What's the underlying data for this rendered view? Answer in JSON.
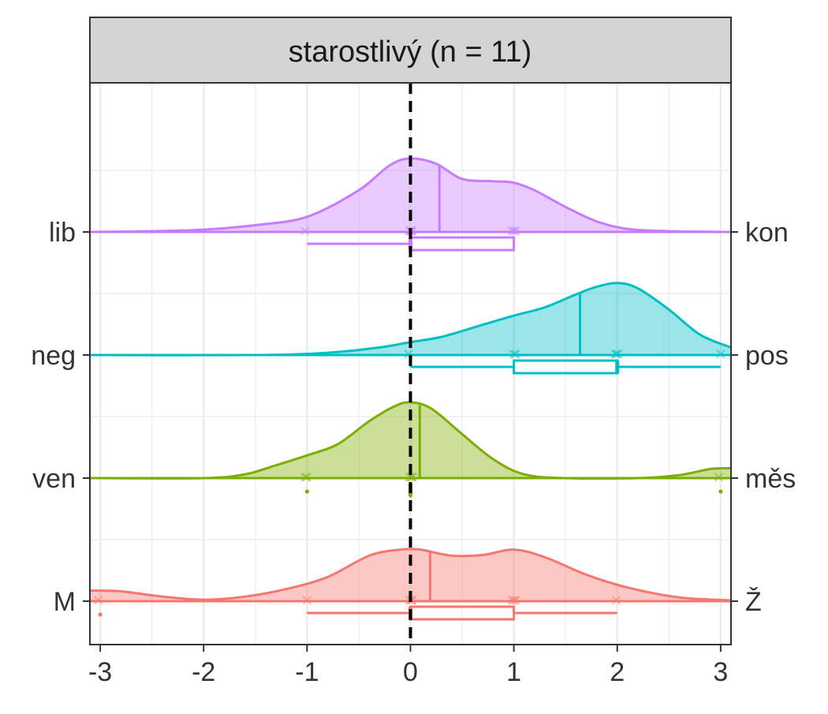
{
  "chart_data": {
    "type": "ridgeline",
    "title": "starostlivý (n = 11)",
    "xlim": [
      -3.1,
      3.1
    ],
    "x_ticks": [
      "-3",
      "-2",
      "-1",
      "0",
      "1",
      "2",
      "3"
    ],
    "x_tick_values": [
      -3,
      -2,
      -1,
      0,
      1,
      2,
      3
    ],
    "reference_line_x": 0,
    "grid": true,
    "rows": [
      {
        "left_label": "lib",
        "right_label": "kon",
        "color": "#C77CFF",
        "mean": 0.28,
        "box": {
          "whisker_low": -1,
          "q1": 0,
          "median": 0,
          "q3": 1,
          "whisker_high": 1
        },
        "points": [
          -1,
          0,
          0,
          0,
          0,
          1,
          1,
          1
        ],
        "outliers": [],
        "density": [
          [
            -3.1,
            0.0
          ],
          [
            -2.5,
            0.01
          ],
          [
            -2.0,
            0.03
          ],
          [
            -1.5,
            0.09
          ],
          [
            -1.0,
            0.2
          ],
          [
            -0.5,
            0.55
          ],
          [
            -0.2,
            0.88
          ],
          [
            0.0,
            0.97
          ],
          [
            0.25,
            0.9
          ],
          [
            0.5,
            0.7
          ],
          [
            0.8,
            0.67
          ],
          [
            1.0,
            0.65
          ],
          [
            1.2,
            0.55
          ],
          [
            1.5,
            0.33
          ],
          [
            1.8,
            0.14
          ],
          [
            2.1,
            0.04
          ],
          [
            2.5,
            0.01
          ],
          [
            3.1,
            0.0
          ]
        ]
      },
      {
        "left_label": "neg",
        "right_label": "pos",
        "color": "#00BFC4",
        "mean": 1.64,
        "box": {
          "whisker_low": 0,
          "q1": 1,
          "median": 2,
          "q3": 2,
          "whisker_high": 3
        },
        "points": [
          0,
          1,
          1,
          2,
          2,
          2,
          3
        ],
        "outliers": [],
        "density": [
          [
            -3.1,
            0.0
          ],
          [
            -1.5,
            0.0
          ],
          [
            -0.8,
            0.03
          ],
          [
            -0.3,
            0.1
          ],
          [
            0.0,
            0.17
          ],
          [
            0.3,
            0.24
          ],
          [
            0.7,
            0.4
          ],
          [
            1.0,
            0.52
          ],
          [
            1.3,
            0.63
          ],
          [
            1.6,
            0.8
          ],
          [
            1.8,
            0.9
          ],
          [
            2.0,
            0.95
          ],
          [
            2.2,
            0.88
          ],
          [
            2.5,
            0.6
          ],
          [
            2.8,
            0.27
          ],
          [
            3.1,
            0.1
          ]
        ]
      },
      {
        "left_label": "ven",
        "right_label": "měs",
        "color": "#7CAE00",
        "mean": 0.09,
        "box": {
          "whisker_low": 0,
          "q1": 0,
          "median": 0,
          "q3": 0,
          "whisker_high": 0
        },
        "points": [
          -1,
          -1,
          0,
          0,
          0,
          3
        ],
        "outliers": [
          -1,
          3
        ],
        "density": [
          [
            -3.1,
            0.0
          ],
          [
            -2.0,
            0.0
          ],
          [
            -1.6,
            0.05
          ],
          [
            -1.3,
            0.17
          ],
          [
            -1.0,
            0.3
          ],
          [
            -0.7,
            0.45
          ],
          [
            -0.4,
            0.75
          ],
          [
            -0.15,
            0.95
          ],
          [
            0.0,
            1.0
          ],
          [
            0.2,
            0.92
          ],
          [
            0.5,
            0.58
          ],
          [
            0.8,
            0.25
          ],
          [
            1.1,
            0.05
          ],
          [
            1.5,
            0.0
          ],
          [
            2.2,
            0.0
          ],
          [
            2.6,
            0.04
          ],
          [
            2.9,
            0.12
          ],
          [
            3.1,
            0.13
          ]
        ]
      },
      {
        "left_label": "M",
        "right_label": "Ž",
        "color": "#F8766D",
        "mean": 0.19,
        "box": {
          "whisker_low": -1,
          "q1": 0,
          "median": 0,
          "q3": 1,
          "whisker_high": 2
        },
        "points": [
          -3,
          -1,
          0,
          0,
          0,
          1,
          1,
          1,
          2
        ],
        "outliers": [
          -3
        ],
        "density": [
          [
            -3.1,
            0.14
          ],
          [
            -2.8,
            0.13
          ],
          [
            -2.4,
            0.06
          ],
          [
            -2.0,
            0.02
          ],
          [
            -1.6,
            0.06
          ],
          [
            -1.2,
            0.16
          ],
          [
            -0.8,
            0.32
          ],
          [
            -0.4,
            0.6
          ],
          [
            -0.1,
            0.68
          ],
          [
            0.1,
            0.68
          ],
          [
            0.4,
            0.6
          ],
          [
            0.7,
            0.61
          ],
          [
            1.0,
            0.68
          ],
          [
            1.3,
            0.58
          ],
          [
            1.7,
            0.35
          ],
          [
            2.1,
            0.18
          ],
          [
            2.6,
            0.05
          ],
          [
            3.1,
            0.01
          ]
        ]
      }
    ]
  }
}
